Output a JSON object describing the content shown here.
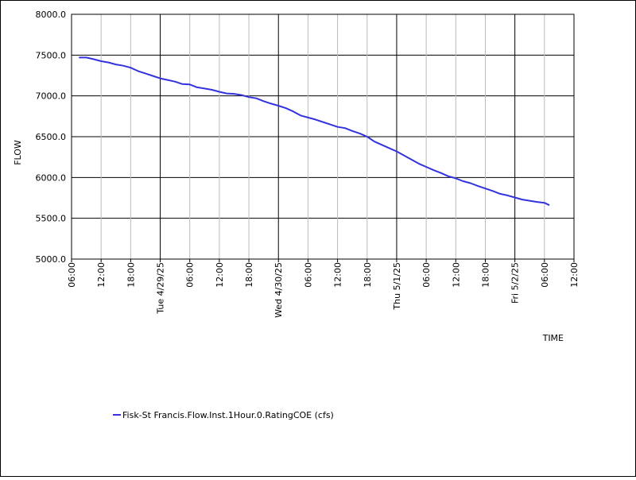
{
  "chart_data": {
    "type": "line",
    "xlabel": "TIME",
    "ylabel": "FLOW",
    "ylim": [
      5000.0,
      8000.0
    ],
    "yticks": [
      "5000.0",
      "5500.0",
      "6000.0",
      "6500.0",
      "7000.0",
      "7500.0",
      "8000.0"
    ],
    "ytick_values": [
      5000,
      5500,
      6000,
      6500,
      7000,
      7500,
      8000
    ],
    "xlim_hours": [
      0,
      102
    ],
    "xticks": [
      {
        "h": 0,
        "label": "06:00",
        "major": false
      },
      {
        "h": 6,
        "label": "12:00",
        "major": false
      },
      {
        "h": 12,
        "label": "18:00",
        "major": false
      },
      {
        "h": 18,
        "label": "Tue 4/29/25",
        "major": true
      },
      {
        "h": 24,
        "label": "06:00",
        "major": false
      },
      {
        "h": 30,
        "label": "12:00",
        "major": false
      },
      {
        "h": 36,
        "label": "18:00",
        "major": false
      },
      {
        "h": 42,
        "label": "Wed 4/30/25",
        "major": true
      },
      {
        "h": 48,
        "label": "06:00",
        "major": false
      },
      {
        "h": 54,
        "label": "12:00",
        "major": false
      },
      {
        "h": 60,
        "label": "18:00",
        "major": false
      },
      {
        "h": 66,
        "label": "Thu 5/1/25",
        "major": true
      },
      {
        "h": 72,
        "label": "06:00",
        "major": false
      },
      {
        "h": 78,
        "label": "12:00",
        "major": false
      },
      {
        "h": 84,
        "label": "18:00",
        "major": false
      },
      {
        "h": 90,
        "label": "Fri 5/2/25",
        "major": true
      },
      {
        "h": 96,
        "label": "06:00",
        "major": false
      },
      {
        "h": 102,
        "label": "12:00",
        "major": false
      }
    ],
    "grid": true,
    "legend_position": "bottom-left",
    "series": [
      {
        "name": "Fisk-St Francis.Flow.Inst.1Hour.0.RatingCOE (cfs)",
        "color": "#3333dd",
        "points": [
          [
            1.5,
            7470
          ],
          [
            3,
            7470
          ],
          [
            4.5,
            7450
          ],
          [
            6,
            7425
          ],
          [
            7.5,
            7410
          ],
          [
            9,
            7385
          ],
          [
            10.5,
            7370
          ],
          [
            12,
            7345
          ],
          [
            13.5,
            7305
          ],
          [
            15,
            7275
          ],
          [
            16.5,
            7245
          ],
          [
            18,
            7215
          ],
          [
            19.5,
            7195
          ],
          [
            21,
            7175
          ],
          [
            22.5,
            7145
          ],
          [
            24,
            7140
          ],
          [
            25.5,
            7105
          ],
          [
            27,
            7090
          ],
          [
            28.5,
            7075
          ],
          [
            30,
            7050
          ],
          [
            31.5,
            7030
          ],
          [
            33,
            7025
          ],
          [
            34.5,
            7010
          ],
          [
            36,
            6985
          ],
          [
            37.5,
            6970
          ],
          [
            39,
            6935
          ],
          [
            40.5,
            6905
          ],
          [
            42,
            6880
          ],
          [
            43.5,
            6850
          ],
          [
            45,
            6810
          ],
          [
            46.5,
            6760
          ],
          [
            48,
            6735
          ],
          [
            49.5,
            6710
          ],
          [
            51,
            6680
          ],
          [
            52.5,
            6650
          ],
          [
            54,
            6620
          ],
          [
            55.5,
            6605
          ],
          [
            57,
            6570
          ],
          [
            58.5,
            6540
          ],
          [
            60,
            6500
          ],
          [
            61.5,
            6440
          ],
          [
            63,
            6400
          ],
          [
            64.5,
            6360
          ],
          [
            66,
            6320
          ],
          [
            67.5,
            6270
          ],
          [
            69,
            6220
          ],
          [
            70.5,
            6170
          ],
          [
            72,
            6130
          ],
          [
            73.5,
            6090
          ],
          [
            75,
            6055
          ],
          [
            76.5,
            6015
          ],
          [
            78,
            5990
          ],
          [
            79.5,
            5955
          ],
          [
            81,
            5930
          ],
          [
            82.5,
            5895
          ],
          [
            84,
            5865
          ],
          [
            85.5,
            5835
          ],
          [
            87,
            5800
          ],
          [
            88.5,
            5780
          ],
          [
            90,
            5755
          ],
          [
            91.5,
            5730
          ],
          [
            93,
            5715
          ],
          [
            94.5,
            5700
          ],
          [
            96,
            5690
          ],
          [
            97,
            5660
          ]
        ]
      }
    ]
  }
}
